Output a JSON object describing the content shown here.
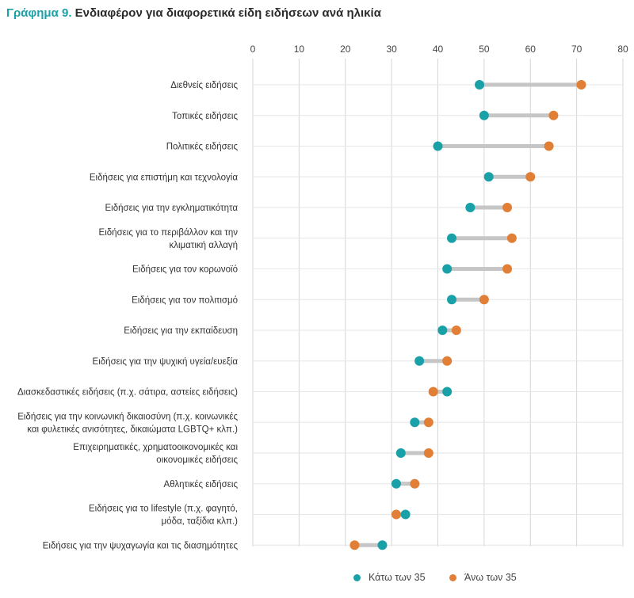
{
  "title": {
    "lead": "Γράφημα 9.",
    "text": " Ενδιαφέρον για διαφορετικά είδη ειδήσεων ανά ηλικία"
  },
  "colors": {
    "under35": "#1aa1a8",
    "over35": "#e07f35",
    "connector": "#c6c6c6",
    "grid": "#d6d6d6",
    "title_accent": "#1aa1a8"
  },
  "legend": {
    "under35": "Κάτω των 35",
    "over35": "Άνω των 35"
  },
  "chart_data": {
    "type": "dumbbell",
    "title": "Ενδιαφέρον για διαφορετικά είδη ειδήσεων ανά ηλικία",
    "xlim": [
      0,
      80
    ],
    "xticks": [
      0,
      10,
      20,
      30,
      40,
      50,
      60,
      70,
      80
    ],
    "x_axis_position": "top",
    "grid": true,
    "legend_position": "bottom-center",
    "categories": [
      [
        "Διεθνείς ειδήσεις"
      ],
      [
        "Τοπικές ειδήσεις"
      ],
      [
        "Πολιτικές ειδήσεις"
      ],
      [
        "Ειδήσεις για επιστήμη και τεχνολογία"
      ],
      [
        "Ειδήσεις για την εγκληματικότητα"
      ],
      [
        "Ειδήσεις για το περιβάλλον και την",
        "κλιματική αλλαγή"
      ],
      [
        "Ειδήσεις για τον κορωνοϊό"
      ],
      [
        "Ειδήσεις για τον πολιτισμό"
      ],
      [
        "Ειδήσεις για την εκπαίδευση"
      ],
      [
        "Ειδήσεις για την ψυχική υγεία/ευεξία"
      ],
      [
        "Διασκεδαστικές ειδήσεις (π.χ. σάτιρα, αστείες ειδήσεις)"
      ],
      [
        "Ειδήσεις για την κοινωνική δικαιοσύνη (π.χ. κοινωνικές",
        "και φυλετικές ανισότητες, δικαιώματα LGBTQ+ κλπ.)"
      ],
      [
        "Επιχειρηματικές, χρηματοοικονομικές και",
        "οικονομικές ειδήσεις"
      ],
      [
        "Αθλητικές ειδήσεις"
      ],
      [
        "Ειδήσεις για το lifestyle (π.χ. φαγητό,",
        "μόδα, ταξίδια κλπ.)"
      ],
      [
        "Ειδήσεις για την ψυχαγωγία και τις διασημότητες"
      ]
    ],
    "series": [
      {
        "name": "Κάτω των 35",
        "values": [
          49,
          50,
          40,
          51,
          47,
          43,
          42,
          43,
          41,
          36,
          42,
          35,
          32,
          31,
          33,
          28
        ]
      },
      {
        "name": "Άνω των 35",
        "values": [
          71,
          65,
          64,
          60,
          55,
          56,
          55,
          50,
          44,
          42,
          39,
          38,
          38,
          35,
          31,
          22
        ]
      }
    ]
  }
}
